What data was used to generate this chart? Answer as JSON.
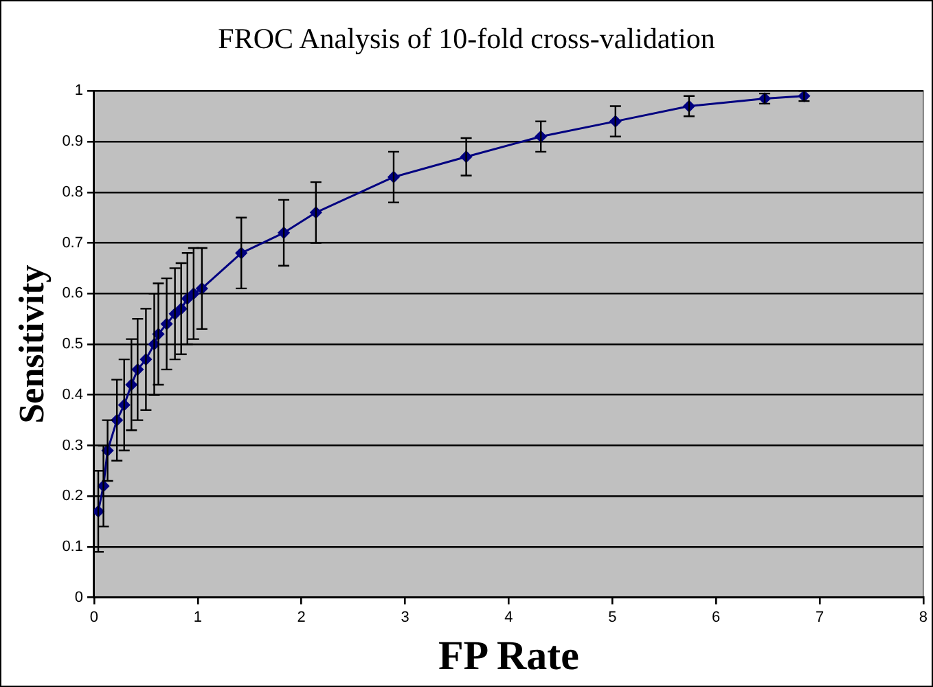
{
  "chart_data": {
    "type": "line",
    "title": "FROC Analysis of 10-fold cross-validation",
    "xlabel": "FP Rate",
    "ylabel": "Sensitivity",
    "series": [
      {
        "color": "#000080",
        "x": [
          0.04,
          0.09,
          0.13,
          0.22,
          0.29,
          0.36,
          0.42,
          0.5,
          0.58,
          0.62,
          0.7,
          0.78,
          0.84,
          0.9,
          0.96,
          1.04,
          1.42,
          1.83,
          2.14,
          2.89,
          3.59,
          4.31,
          5.03,
          5.74,
          6.47,
          6.85
        ],
        "values": [
          0.17,
          0.22,
          0.29,
          0.35,
          0.38,
          0.42,
          0.45,
          0.47,
          0.5,
          0.52,
          0.54,
          0.56,
          0.57,
          0.59,
          0.6,
          0.61,
          0.68,
          0.72,
          0.76,
          0.83,
          0.87,
          0.91,
          0.94,
          0.97,
          0.985,
          0.99
        ],
        "errors": [
          0.08,
          0.08,
          0.06,
          0.08,
          0.09,
          0.09,
          0.1,
          0.1,
          0.1,
          0.1,
          0.09,
          0.09,
          0.09,
          0.09,
          0.09,
          0.08,
          0.07,
          0.065,
          0.06,
          0.05,
          0.037,
          0.03,
          0.03,
          0.02,
          0.01,
          0.01
        ]
      }
    ],
    "xlim": [
      0,
      8
    ],
    "xticks": [
      0,
      1,
      2,
      3,
      4,
      5,
      6,
      7,
      8
    ],
    "ylim": [
      0,
      1
    ],
    "yticks": [
      0,
      0.1,
      0.2,
      0.3,
      0.4,
      0.5,
      0.6,
      0.7,
      0.8,
      0.9,
      1
    ],
    "grid": "y",
    "legend": false,
    "marker": "diamond",
    "line_style": "solid"
  }
}
